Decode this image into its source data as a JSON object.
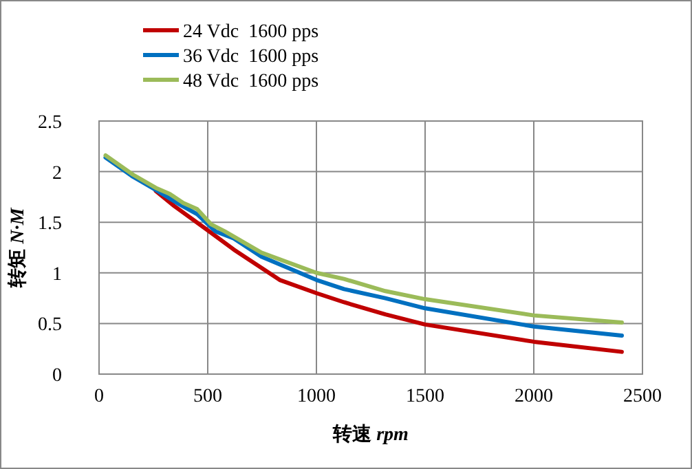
{
  "chart_data": {
    "type": "line",
    "xlabel": "转速 *rpm*",
    "ylabel": "转矩 *N·M*",
    "xlim": [
      0,
      2500
    ],
    "ylim": [
      0,
      2.5
    ],
    "xticks": [
      0,
      500,
      1000,
      1500,
      2000,
      2500
    ],
    "yticks": [
      0,
      0.5,
      1,
      1.5,
      2,
      2.5
    ],
    "grid": true,
    "legend": "top",
    "marker": "none",
    "line_style": "solid",
    "series": [
      {
        "name": "24 Vdc  1600 pps",
        "color": "#c00000",
        "x": [
          261,
          346,
          494,
          620,
          831,
          1000,
          1127,
          1317,
          1500,
          2000,
          2405
        ],
        "values": [
          1.81,
          1.66,
          1.43,
          1.23,
          0.93,
          0.8,
          0.71,
          0.59,
          0.49,
          0.32,
          0.22
        ]
      },
      {
        "name": "36 Vdc  1600 pps",
        "color": "#0070c0",
        "x": [
          30,
          156,
          261,
          367,
          451,
          536,
          620,
          747,
          1000,
          1127,
          1317,
          1500,
          2000,
          2405
        ],
        "values": [
          2.14,
          1.95,
          1.82,
          1.68,
          1.58,
          1.41,
          1.34,
          1.16,
          0.93,
          0.84,
          0.75,
          0.65,
          0.47,
          0.38
        ]
      },
      {
        "name": "48 Vdc  1600 pps",
        "color": "#9bbb59",
        "x": [
          30,
          156,
          261,
          325,
          388,
          451,
          515,
          578,
          747,
          1000,
          1127,
          1317,
          1500,
          2000,
          2405
        ],
        "values": [
          2.16,
          1.97,
          1.84,
          1.78,
          1.69,
          1.63,
          1.48,
          1.41,
          1.2,
          1.0,
          0.94,
          0.82,
          0.74,
          0.58,
          0.51
        ]
      }
    ]
  }
}
